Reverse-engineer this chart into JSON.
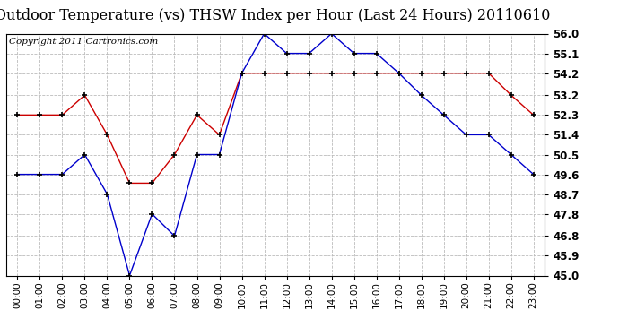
{
  "title": "Outdoor Temperature (vs) THSW Index per Hour (Last 24 Hours) 20110610",
  "copyright": "Copyright 2011 Cartronics.com",
  "hours": [
    0,
    1,
    2,
    3,
    4,
    5,
    6,
    7,
    8,
    9,
    10,
    11,
    12,
    13,
    14,
    15,
    16,
    17,
    18,
    19,
    20,
    21,
    22,
    23
  ],
  "hour_labels": [
    "00:00",
    "01:00",
    "02:00",
    "03:00",
    "04:00",
    "05:00",
    "06:00",
    "07:00",
    "08:00",
    "09:00",
    "10:00",
    "11:00",
    "12:00",
    "13:00",
    "14:00",
    "15:00",
    "16:00",
    "17:00",
    "18:00",
    "19:00",
    "20:00",
    "21:00",
    "22:00",
    "23:00"
  ],
  "temp_red": [
    52.3,
    52.3,
    52.3,
    53.2,
    51.4,
    49.2,
    49.2,
    50.5,
    52.3,
    51.4,
    54.2,
    54.2,
    54.2,
    54.2,
    54.2,
    54.2,
    54.2,
    54.2,
    54.2,
    54.2,
    54.2,
    54.2,
    53.2,
    52.3
  ],
  "temp_blue": [
    49.6,
    49.6,
    49.6,
    50.5,
    48.7,
    45.0,
    47.8,
    46.8,
    50.5,
    50.5,
    54.2,
    56.0,
    55.1,
    55.1,
    56.0,
    55.1,
    55.1,
    54.2,
    53.2,
    52.3,
    51.4,
    51.4,
    50.5,
    49.6
  ],
  "ylim_min": 45.0,
  "ylim_max": 56.0,
  "yticks": [
    45.0,
    45.9,
    46.8,
    47.8,
    48.7,
    49.6,
    50.5,
    51.4,
    52.3,
    53.2,
    54.2,
    55.1,
    56.0
  ],
  "red_color": "#cc0000",
  "blue_color": "#0000cc",
  "bg_color": "#ffffff",
  "plot_bg_color": "#ffffff",
  "grid_color": "#bbbbbb",
  "title_fontsize": 11.5,
  "copyright_fontsize": 7.5
}
